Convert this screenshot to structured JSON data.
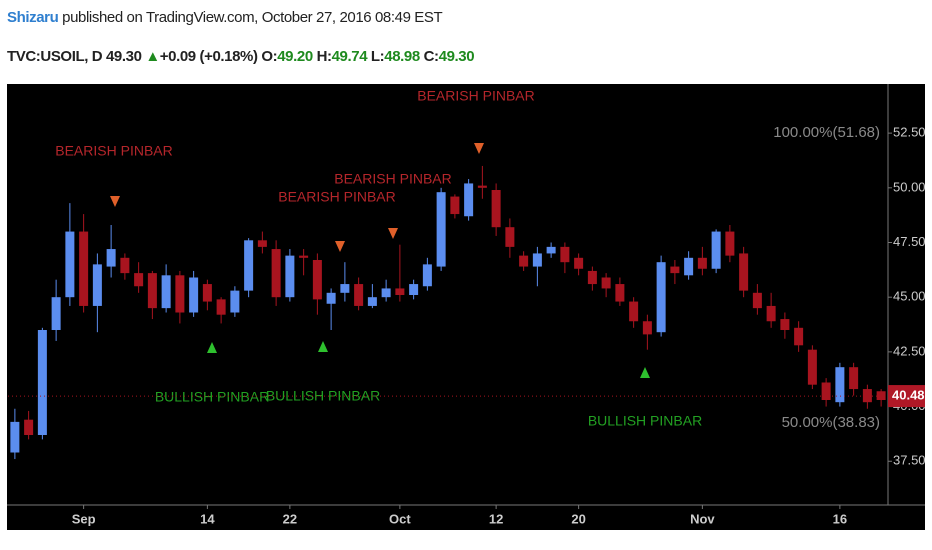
{
  "header": {
    "author": "Shizaru",
    "published": "published on TradingView.com, October 27, 2016 08:49 EST",
    "symbol": "TVC:USOIL, D",
    "last": "49.30",
    "change": "+0.09 (+0.18%)",
    "o_label": "O:",
    "o": "49.20",
    "h_label": "H:",
    "h": "49.74",
    "l_label": "L:",
    "l": "48.98",
    "c_label": "C:",
    "c": "49.30"
  },
  "chart_data": {
    "type": "candlestick",
    "categories": [
      null,
      null,
      null,
      null,
      null,
      "Sep",
      null,
      null,
      null,
      null,
      null,
      null,
      null,
      null,
      "14",
      null,
      null,
      null,
      null,
      null,
      "22",
      null,
      null,
      null,
      null,
      null,
      null,
      null,
      "Oct",
      null,
      null,
      null,
      null,
      null,
      null,
      "12",
      null,
      null,
      null,
      null,
      null,
      "20",
      null,
      null,
      null,
      null,
      null,
      null,
      null,
      null,
      "Nov",
      null,
      null,
      null,
      null,
      null,
      null,
      null,
      null,
      null,
      "16",
      null,
      null,
      null
    ],
    "open": [
      37.9,
      39.4,
      38.7,
      43.5,
      45.0,
      48.0,
      44.6,
      46.4,
      46.8,
      46.1,
      46.1,
      44.5,
      46.0,
      44.3,
      45.6,
      44.9,
      44.3,
      45.3,
      47.6,
      47.2,
      45.0,
      46.9,
      46.7,
      44.7,
      45.2,
      45.6,
      44.6,
      45.0,
      45.4,
      45.1,
      45.5,
      46.4,
      49.6,
      48.7,
      50.1,
      49.9,
      48.2,
      46.9,
      46.4,
      47.0,
      47.3,
      46.8,
      46.2,
      45.9,
      45.6,
      44.8,
      43.9,
      43.4,
      46.4,
      46.0,
      46.8,
      46.3,
      48.0,
      47.0,
      45.2,
      44.6,
      44.0,
      43.6,
      42.6,
      41.1,
      40.2,
      41.8,
      40.8,
      40.7
    ],
    "high": [
      39.9,
      39.8,
      43.6,
      45.8,
      49.3,
      48.8,
      47.0,
      48.3,
      47.0,
      46.6,
      46.2,
      46.5,
      46.2,
      46.2,
      45.8,
      45.0,
      45.5,
      47.7,
      48.0,
      47.6,
      47.2,
      47.2,
      47.0,
      45.4,
      46.6,
      45.9,
      45.6,
      45.8,
      47.4,
      45.8,
      46.8,
      50.0,
      49.7,
      50.4,
      51.0,
      50.2,
      48.6,
      47.1,
      47.3,
      47.5,
      47.5,
      47.0,
      46.4,
      46.1,
      45.9,
      45.0,
      44.2,
      46.9,
      46.7,
      47.1,
      47.3,
      48.1,
      48.3,
      47.3,
      45.6,
      45.2,
      44.3,
      43.9,
      42.8,
      41.3,
      42.0,
      42.0,
      41.0,
      40.8
    ],
    "low": [
      37.6,
      38.5,
      38.5,
      43.0,
      44.6,
      44.3,
      43.4,
      45.9,
      45.8,
      45.2,
      44.0,
      44.3,
      43.8,
      44.1,
      44.4,
      43.8,
      44.1,
      45.0,
      47.0,
      44.6,
      44.8,
      46.0,
      44.2,
      43.5,
      44.8,
      44.4,
      44.5,
      44.8,
      44.8,
      44.9,
      45.3,
      46.2,
      48.6,
      48.5,
      49.5,
      47.8,
      46.8,
      46.2,
      45.5,
      46.8,
      46.1,
      46.0,
      45.3,
      45.0,
      44.6,
      43.6,
      42.6,
      43.2,
      45.6,
      45.8,
      46.0,
      46.1,
      46.6,
      45.0,
      44.2,
      43.6,
      43.1,
      42.5,
      40.8,
      40.0,
      40.0,
      40.5,
      39.9,
      40.0
    ],
    "close": [
      39.3,
      38.7,
      43.5,
      45.0,
      48.0,
      44.6,
      46.5,
      47.2,
      46.1,
      45.5,
      44.5,
      46.0,
      44.3,
      45.9,
      44.8,
      44.2,
      45.3,
      47.6,
      47.3,
      45.0,
      46.9,
      46.8,
      44.9,
      45.2,
      45.6,
      44.6,
      45.0,
      45.4,
      45.1,
      45.6,
      46.5,
      49.8,
      48.8,
      50.2,
      50.0,
      48.2,
      47.3,
      46.4,
      47.0,
      47.3,
      46.6,
      46.3,
      45.6,
      45.4,
      44.8,
      43.9,
      43.3,
      46.6,
      46.1,
      46.8,
      46.3,
      48.0,
      46.9,
      45.3,
      44.5,
      43.9,
      43.5,
      42.8,
      41.0,
      40.3,
      41.8,
      40.8,
      40.2,
      40.3
    ],
    "up_color": "#5b8def",
    "down_color": "#a8141f",
    "ylim": [
      35.5,
      54.7
    ],
    "yticks": [
      {
        "value": 37.5,
        "label": "37.50"
      },
      {
        "value": 40,
        "label": "40.00"
      },
      {
        "value": 42.5,
        "label": "42.50"
      },
      {
        "value": 45,
        "label": "45.00"
      },
      {
        "value": 47.5,
        "label": "47.50"
      },
      {
        "value": 50,
        "label": "50.00"
      },
      {
        "value": 52.5,
        "label": "52.50"
      }
    ],
    "last_price": 40.48,
    "fib_labels": [
      "100.00%(51.68)",
      "50.00%(38.83)"
    ],
    "bearish_label": "BEARISH PINBAR",
    "bullish_label": "BULLISH PINBAR"
  }
}
